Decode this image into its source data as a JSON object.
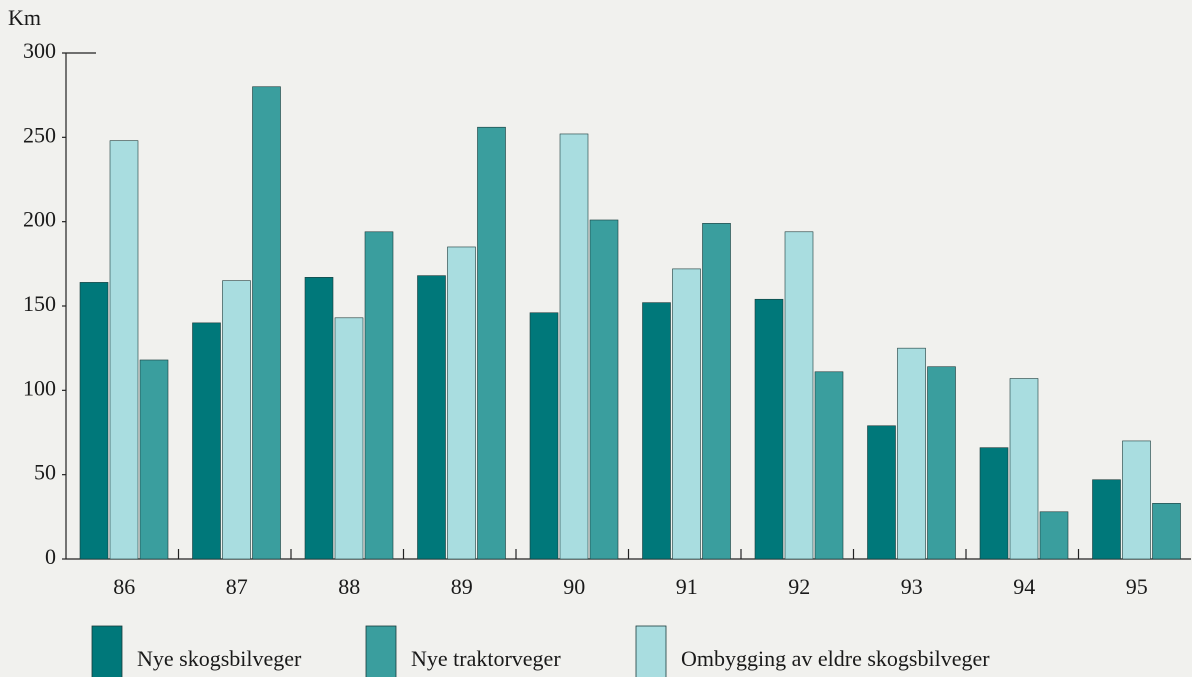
{
  "chart_data": {
    "type": "bar",
    "y_label": "Km",
    "categories": [
      "86",
      "87",
      "88",
      "89",
      "90",
      "91",
      "92",
      "93",
      "94",
      "95"
    ],
    "series": [
      {
        "name": "Nye skogsbilveger",
        "color": "#00787a",
        "values": [
          164,
          140,
          167,
          168,
          146,
          152,
          154,
          79,
          66,
          47
        ]
      },
      {
        "name": "Nye traktorveger",
        "color": "#3a9e9e",
        "values": [
          118,
          280,
          194,
          256,
          201,
          199,
          111,
          114,
          28,
          33
        ]
      },
      {
        "name": "Ombygging av eldre skogsbilveger",
        "color": "#a9dde0",
        "values": [
          248,
          165,
          143,
          185,
          252,
          172,
          194,
          125,
          107,
          70
        ]
      }
    ],
    "ylim": [
      0,
      300
    ],
    "yticks": [
      0,
      50,
      100,
      150,
      200,
      250,
      300
    ]
  }
}
